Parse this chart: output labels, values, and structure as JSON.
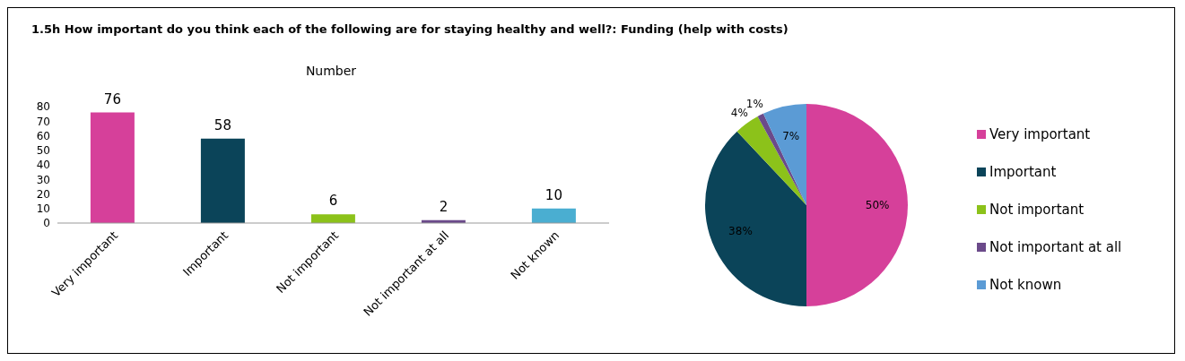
{
  "chart_data": [
    {
      "type": "bar",
      "title": "1.5h How important do you think each of the following are for staying healthy and well?: Funding (help with costs)",
      "subtitle": "Number",
      "categories": [
        "Very important",
        "Important",
        "Not important",
        "Not important at all",
        "Not known"
      ],
      "values": [
        76,
        58,
        6,
        2,
        10
      ],
      "colors": [
        "#d6409a",
        "#0b4459",
        "#8cc21a",
        "#6b4a8a",
        "#4aaed1"
      ],
      "ylim": [
        0,
        80
      ],
      "yticks": [
        0,
        10,
        20,
        30,
        40,
        50,
        60,
        70,
        80
      ],
      "data_labels": true
    },
    {
      "type": "pie",
      "categories": [
        "Very important",
        "Important",
        "Not important",
        "Not important at all",
        "Not known"
      ],
      "values": [
        50,
        38,
        4,
        1,
        7
      ],
      "colors": [
        "#d6409a",
        "#0b4459",
        "#8cc21a",
        "#6b4a8a",
        "#5b9bd5"
      ],
      "value_labels": [
        "50%",
        "38%",
        "4%",
        "1%",
        "7%"
      ],
      "legend": "right"
    }
  ]
}
